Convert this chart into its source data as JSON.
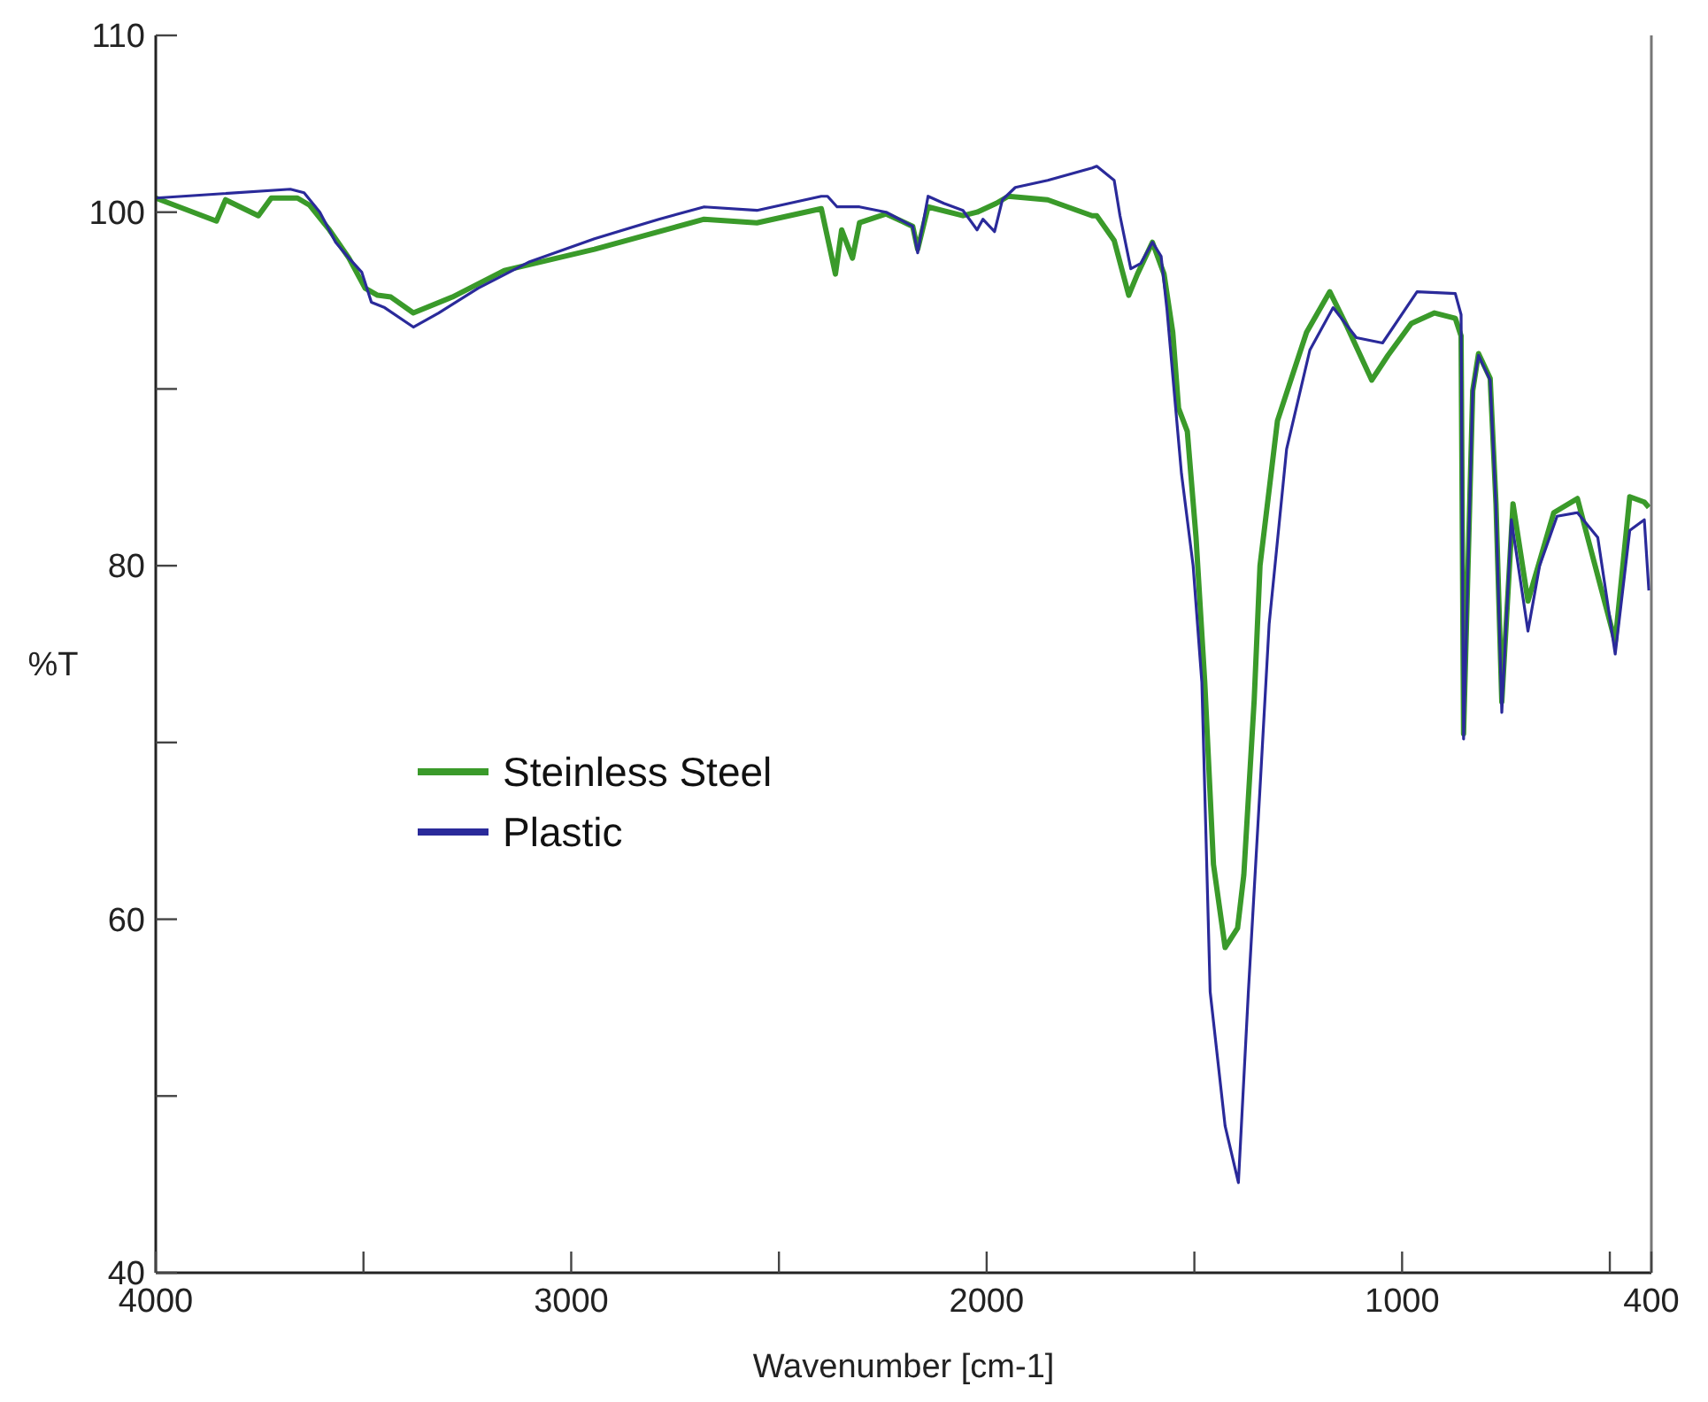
{
  "chart_data": {
    "type": "line",
    "xlabel": "Wavenumber [cm-1]",
    "ylabel": "%T",
    "xlim": [
      4000,
      400
    ],
    "ylim": [
      40,
      110
    ],
    "xticks": [
      4000,
      {
        "value": 3500,
        "label": null
      },
      3000,
      {
        "value": 2500,
        "label": null
      },
      2000,
      {
        "value": 1500,
        "label": null
      },
      1000,
      {
        "value": 500,
        "label": null
      },
      400
    ],
    "yticks": [
      40,
      {
        "value": 50,
        "label": null
      },
      60,
      {
        "value": 70,
        "label": null
      },
      80,
      {
        "value": 90,
        "label": null
      },
      100,
      110
    ],
    "grid": false,
    "legend": "left",
    "marker": "none",
    "line_style": "solid",
    "series": [
      {
        "name": "Steinless Steel",
        "color": "#3a9a2a",
        "x": [
          4000,
          3854,
          3832,
          3753,
          3722,
          3659,
          3630,
          3582,
          3535,
          3496,
          3466,
          3434,
          3380,
          3286,
          3161,
          2944,
          2680,
          2553,
          2398,
          2364,
          2349,
          2323,
          2306,
          2242,
          2178,
          2166,
          2141,
          2057,
          2023,
          1977,
          1948,
          1853,
          1746,
          1735,
          1693,
          1658,
          1637,
          1601,
          1573,
          1552,
          1538,
          1517,
          1496,
          1475,
          1454,
          1426,
          1396,
          1381,
          1356,
          1342,
          1300,
          1230,
          1174,
          1132,
          1073,
          1034,
          978,
          922,
          872,
          858,
          852,
          830,
          816,
          788,
          774,
          760,
          733,
          697,
          635,
          578,
          550,
          487,
          452,
          417,
          406
        ],
        "values": [
          100.8,
          99.5,
          100.7,
          99.8,
          100.8,
          100.8,
          100.4,
          99.0,
          97.4,
          95.7,
          95.3,
          95.2,
          94.3,
          95.2,
          96.7,
          97.9,
          99.6,
          99.4,
          100.2,
          96.5,
          99.0,
          97.4,
          99.4,
          99.9,
          99.2,
          97.9,
          100.3,
          99.8,
          100.0,
          100.5,
          100.9,
          100.7,
          99.8,
          99.8,
          98.4,
          95.3,
          96.5,
          98.3,
          96.5,
          93.2,
          88.9,
          87.6,
          81.6,
          73.4,
          63.1,
          58.4,
          59.5,
          62.5,
          72.4,
          80.0,
          88.2,
          93.2,
          95.5,
          93.5,
          90.5,
          91.9,
          93.7,
          94.3,
          94.0,
          93.0,
          70.5,
          89.9,
          92.0,
          90.6,
          83.5,
          72.3,
          83.5,
          78.0,
          83.0,
          83.8,
          81.3,
          75.7,
          83.9,
          83.6,
          83.3
        ]
      },
      {
        "name": "Plastic",
        "color": "#2a2a9a",
        "x": [
          4000,
          3676,
          3643,
          3605,
          3567,
          3535,
          3504,
          3481,
          3449,
          3380,
          3319,
          3224,
          3100,
          2944,
          2789,
          2680,
          2553,
          2398,
          2383,
          2360,
          2306,
          2242,
          2178,
          2166,
          2141,
          2103,
          2057,
          2023,
          2009,
          1981,
          1962,
          1931,
          1853,
          1746,
          1735,
          1693,
          1679,
          1653,
          1629,
          1601,
          1580,
          1566,
          1545,
          1531,
          1503,
          1482,
          1462,
          1426,
          1394,
          1370,
          1342,
          1320,
          1278,
          1222,
          1166,
          1110,
          1047,
          964,
          872,
          858,
          852,
          830,
          816,
          788,
          774,
          760,
          737,
          697,
          669,
          627,
          578,
          529,
          487,
          452,
          417,
          406
        ],
        "values": [
          100.8,
          101.3,
          101.1,
          100.0,
          98.3,
          97.4,
          96.6,
          94.9,
          94.6,
          93.5,
          94.3,
          95.7,
          97.2,
          98.5,
          99.6,
          100.3,
          100.1,
          100.9,
          100.9,
          100.3,
          100.3,
          100.0,
          99.2,
          97.7,
          100.9,
          100.5,
          100.1,
          99.0,
          99.6,
          98.9,
          100.7,
          101.4,
          101.8,
          102.5,
          102.6,
          101.8,
          99.8,
          96.8,
          97.1,
          98.3,
          97.5,
          94.5,
          88.9,
          85.2,
          80.0,
          73.4,
          55.9,
          48.3,
          45.1,
          55.9,
          67.4,
          76.7,
          86.6,
          92.2,
          94.6,
          92.9,
          92.6,
          95.5,
          95.4,
          94.2,
          70.2,
          89.9,
          91.9,
          90.5,
          83.3,
          71.7,
          82.6,
          76.3,
          80.0,
          82.8,
          83.0,
          81.6,
          75.0,
          82.0,
          82.6,
          78.6
        ]
      }
    ]
  }
}
